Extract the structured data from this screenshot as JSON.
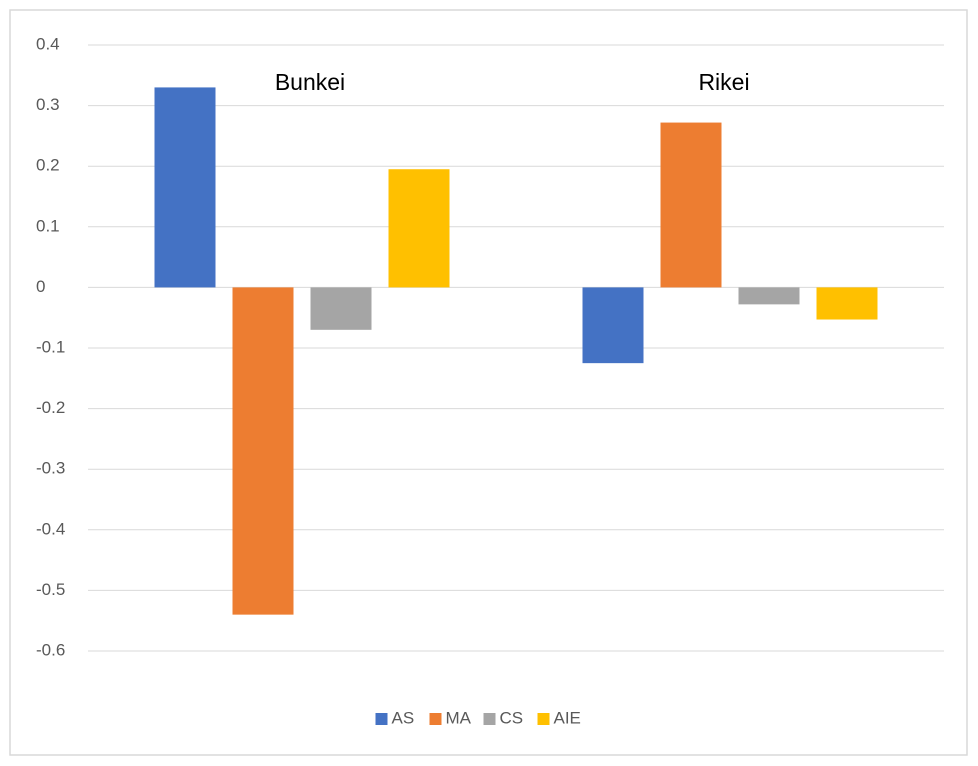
{
  "chart_data": {
    "type": "bar",
    "categories": [
      "Bunkei",
      "Rikei"
    ],
    "series": [
      {
        "name": "AS",
        "color": "#4472c4",
        "values": [
          0.33,
          -0.125
        ]
      },
      {
        "name": "MA",
        "color": "#ed7d31",
        "values": [
          -0.54,
          0.272
        ]
      },
      {
        "name": "CS",
        "color": "#a5a5a5",
        "values": [
          -0.07,
          -0.028
        ]
      },
      {
        "name": "AIE",
        "color": "#ffc000",
        "values": [
          0.195,
          -0.053
        ]
      }
    ],
    "ylim": [
      -0.6,
      0.4
    ],
    "yticks": [
      0.4,
      0.3,
      0.2,
      0.1,
      0,
      -0.1,
      -0.2,
      -0.3,
      -0.4,
      -0.5,
      -0.6
    ],
    "grid": true,
    "legend": "bottom"
  }
}
